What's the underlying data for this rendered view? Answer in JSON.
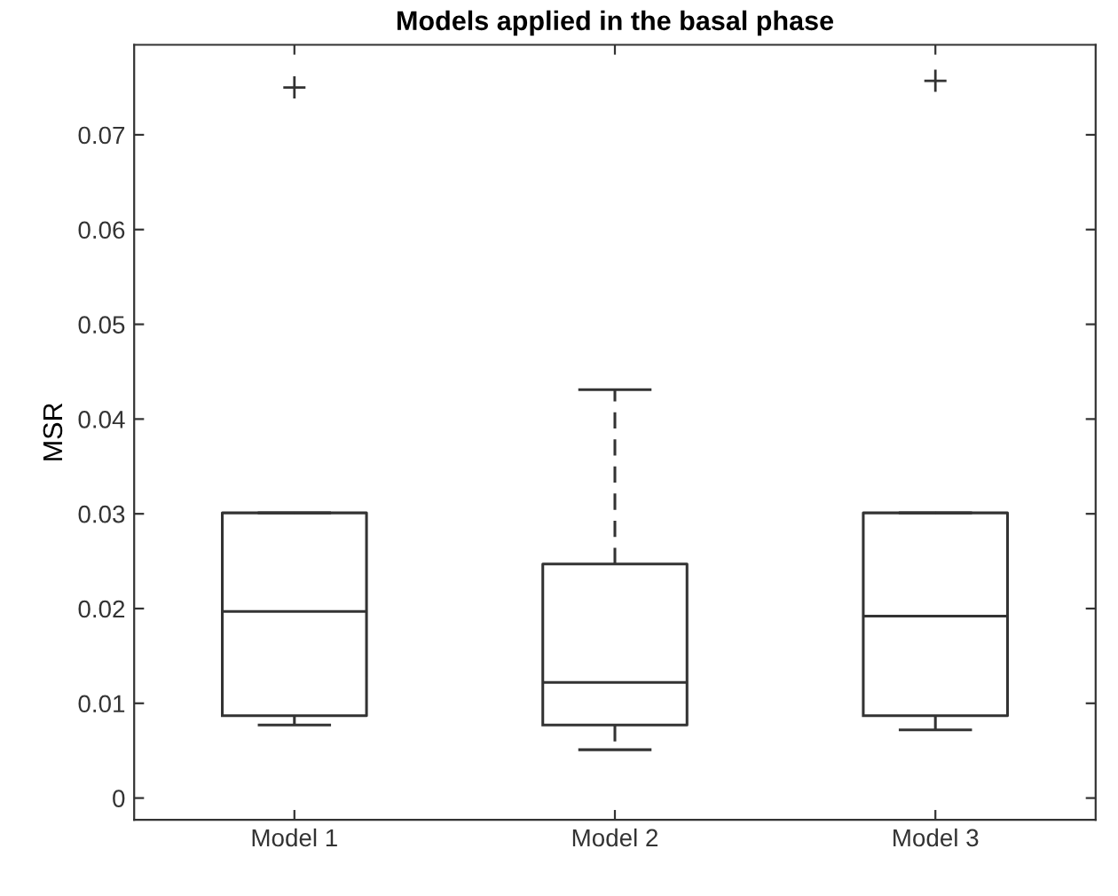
{
  "chart_data": {
    "type": "box",
    "title": "Models applied in the basal phase",
    "ylabel": "MSR",
    "categories": [
      "Model 1",
      "Model 2",
      "Model 3"
    ],
    "boxes": [
      {
        "low": 0.0077,
        "q1": 0.0087,
        "median": 0.0197,
        "q3": 0.0301,
        "high": 0.0301,
        "outliers": [
          0.075
        ]
      },
      {
        "low": 0.0051,
        "q1": 0.0077,
        "median": 0.0122,
        "q3": 0.0247,
        "high": 0.0431
      },
      {
        "low": 0.0072,
        "q1": 0.0087,
        "median": 0.0192,
        "q3": 0.0301,
        "high": 0.0301,
        "outliers": [
          0.0757
        ]
      }
    ],
    "color": "#333333",
    "ylim": [
      -0.0023,
      0.0795
    ],
    "yticks": [
      0,
      0.01,
      0.02,
      0.03,
      0.04,
      0.05,
      0.06,
      0.07
    ],
    "marker": "cross",
    "line_style": "dashed",
    "grid": false,
    "legend": false
  }
}
